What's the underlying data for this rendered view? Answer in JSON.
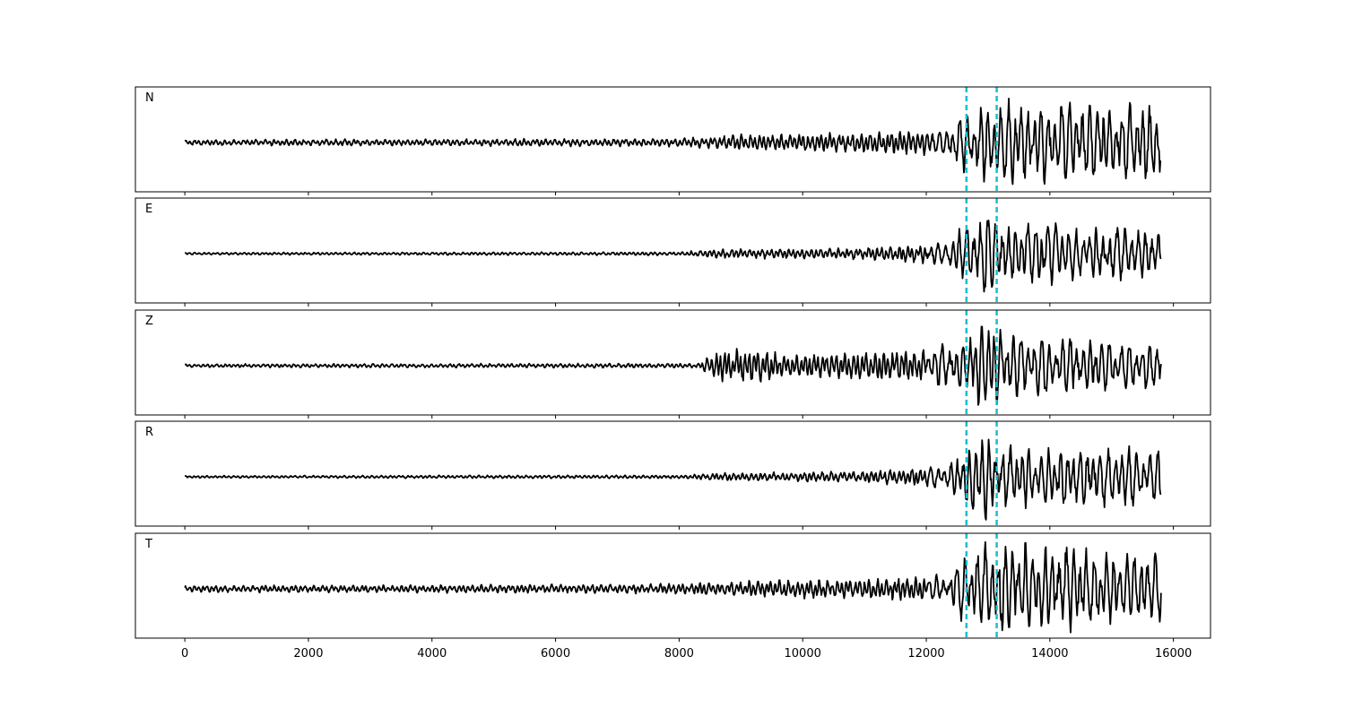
{
  "chart_data": {
    "type": "line",
    "title": "",
    "xlabel": "",
    "ylabel": "",
    "x_range": [
      0,
      15800
    ],
    "xlim": [
      -800,
      16600
    ],
    "x_ticks": [
      0,
      2000,
      4000,
      6000,
      8000,
      10000,
      12000,
      14000,
      16000
    ],
    "x_tick_labels": [
      "0",
      "2000",
      "4000",
      "6000",
      "8000",
      "10000",
      "12000",
      "14000",
      "16000"
    ],
    "y_ticks_visible": false,
    "grid": false,
    "legend": "none",
    "line_color": "#000000",
    "marker_color": "#17becf",
    "markers": [
      {
        "x": 12650,
        "style": "dashed"
      },
      {
        "x": 13140,
        "style": "dashed"
      }
    ],
    "panels": [
      {
        "label": "N",
        "envelope": [
          [
            0,
            0.05
          ],
          [
            8000,
            0.07
          ],
          [
            9000,
            0.14
          ],
          [
            11000,
            0.18
          ],
          [
            12300,
            0.25
          ],
          [
            12650,
            0.55
          ],
          [
            13140,
            0.75
          ],
          [
            15800,
            0.7
          ]
        ]
      },
      {
        "label": "E",
        "envelope": [
          [
            0,
            0.02
          ],
          [
            8000,
            0.03
          ],
          [
            8600,
            0.08
          ],
          [
            11000,
            0.1
          ],
          [
            12300,
            0.2
          ],
          [
            12650,
            0.6
          ],
          [
            12950,
            0.9
          ],
          [
            13400,
            0.55
          ],
          [
            15800,
            0.45
          ]
        ]
      },
      {
        "label": "Z",
        "envelope": [
          [
            0,
            0.03
          ],
          [
            8300,
            0.04
          ],
          [
            8600,
            0.25
          ],
          [
            9000,
            0.3
          ],
          [
            10000,
            0.2
          ],
          [
            12000,
            0.3
          ],
          [
            12650,
            0.5
          ],
          [
            13000,
            0.9
          ],
          [
            13400,
            0.55
          ],
          [
            15800,
            0.4
          ]
        ]
      },
      {
        "label": "R",
        "envelope": [
          [
            0,
            0.02
          ],
          [
            8000,
            0.03
          ],
          [
            8800,
            0.07
          ],
          [
            11000,
            0.1
          ],
          [
            12300,
            0.2
          ],
          [
            12650,
            0.55
          ],
          [
            12950,
            0.9
          ],
          [
            13400,
            0.55
          ],
          [
            15800,
            0.5
          ]
        ]
      },
      {
        "label": "T",
        "envelope": [
          [
            0,
            0.06
          ],
          [
            7500,
            0.08
          ],
          [
            9500,
            0.15
          ],
          [
            11500,
            0.2
          ],
          [
            12300,
            0.25
          ],
          [
            12650,
            0.65
          ],
          [
            13140,
            0.85
          ],
          [
            14000,
            0.75
          ],
          [
            15800,
            0.6
          ]
        ]
      }
    ]
  }
}
